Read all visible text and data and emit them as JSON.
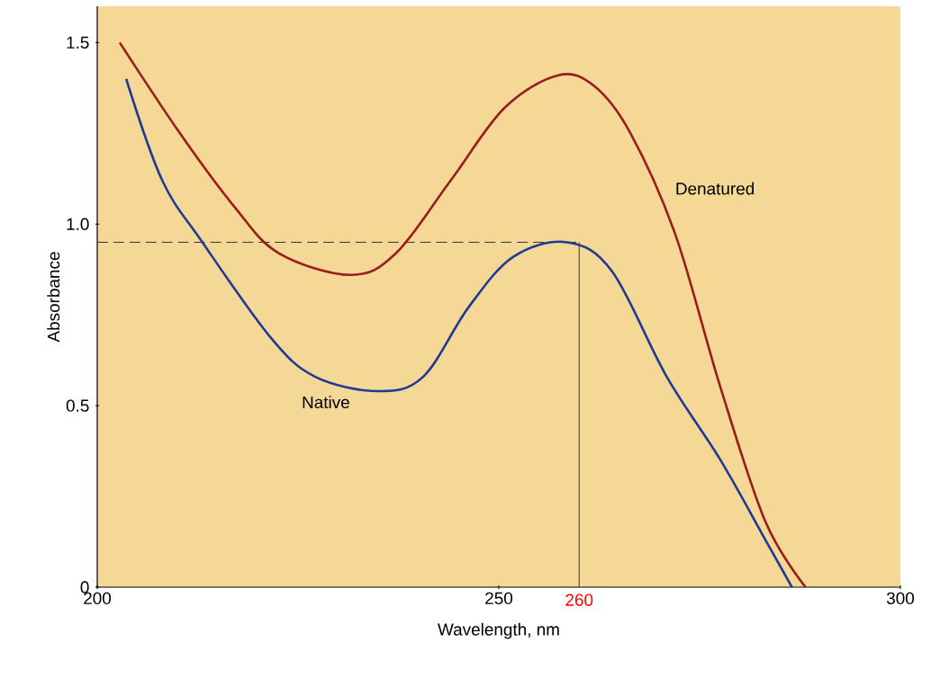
{
  "chart_data": {
    "type": "line",
    "xlabel": "Wavelength, nm",
    "ylabel": "Absorbance",
    "xlim": [
      200,
      300
    ],
    "ylim": [
      0,
      1.6
    ],
    "xticks": [
      200,
      250,
      300
    ],
    "yticks": [
      0,
      0.5,
      {
        "value": 1.0,
        "label": "1.0"
      },
      1.5
    ],
    "series": [
      {
        "name": "Denatured",
        "color": "#9b1c1c",
        "x": [
          202.8,
          210.3,
          217,
          222.6,
          231.6,
          237.2,
          244,
          250.7,
          257.4,
          261.9,
          266.4,
          272,
          277.6,
          283.2,
          288.2
        ],
        "values": [
          1.5,
          1.25,
          1.05,
          0.92,
          0.86,
          0.92,
          1.12,
          1.32,
          1.41,
          1.38,
          1.25,
          0.97,
          0.55,
          0.18,
          0
        ]
      },
      {
        "name": "Native",
        "color": "#1f3a93",
        "x": [
          203.6,
          208.1,
          213.1,
          221.5,
          227.1,
          235,
          240.6,
          246.2,
          251.8,
          258.5,
          264.1,
          270.9,
          277.6,
          283.2,
          286.5
        ],
        "values": [
          1.4,
          1.12,
          0.95,
          0.69,
          0.58,
          0.54,
          0.58,
          0.77,
          0.91,
          0.95,
          0.87,
          0.58,
          0.35,
          0.13,
          0
        ]
      }
    ],
    "ref_lines": [
      {
        "axis": "y",
        "value": 0.95,
        "color": "#333333",
        "line_style": "dashed"
      },
      {
        "axis": "x",
        "value": 260,
        "label": "260",
        "color": "#333333",
        "line_style": "solid"
      }
    ],
    "grid": false,
    "marker": "none",
    "line_style": "solid"
  }
}
